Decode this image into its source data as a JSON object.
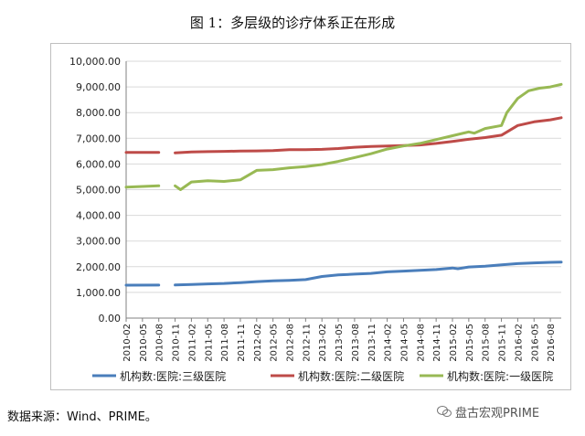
{
  "figure": {
    "title": "图 1：多层级的诊疗体系正在形成",
    "source": "数据来源：Wind、PRIME。",
    "watermark": "盘古宏观PRIME"
  },
  "colors": {
    "series_blue": "#4a7ebb",
    "series_red": "#be4b48",
    "series_green": "#98b954",
    "grid": "#d9d9d9",
    "axis": "#808080"
  },
  "chart_data": {
    "type": "line",
    "title": "",
    "xlabel": "",
    "ylabel": "",
    "ylim": [
      0,
      10000
    ],
    "yticks": [
      "0.00",
      "1,000.00",
      "2,000.00",
      "3,000.00",
      "4,000.00",
      "5,000.00",
      "6,000.00",
      "7,000.00",
      "8,000.00",
      "9,000.00",
      "10,000.00"
    ],
    "xticks": [
      "2010-02",
      "2010-05",
      "2010-08",
      "2010-11",
      "2011-02",
      "2011-05",
      "2011-08",
      "2011-11",
      "2012-02",
      "2012-05",
      "2012-08",
      "2012-11",
      "2013-02",
      "2013-05",
      "2013-08",
      "2013-11",
      "2014-02",
      "2014-05",
      "2014-08",
      "2014-11",
      "2015-02",
      "2015-05",
      "2015-08",
      "2015-11",
      "2016-02",
      "2016-05",
      "2016-08"
    ],
    "x_start": "2010-02",
    "x_end": "2016-10",
    "grid": true,
    "legend": "bottom",
    "series": [
      {
        "name": "机构数:医院:三级医院",
        "points": [
          [
            "2010-02",
            1280
          ],
          [
            "2010-08",
            1285
          ],
          [
            "2010-10",
            null
          ],
          [
            "2010-11",
            1290
          ],
          [
            "2011-02",
            1310
          ],
          [
            "2011-05",
            1330
          ],
          [
            "2011-08",
            1350
          ],
          [
            "2011-11",
            1380
          ],
          [
            "2012-02",
            1420
          ],
          [
            "2012-05",
            1450
          ],
          [
            "2012-08",
            1470
          ],
          [
            "2012-11",
            1500
          ],
          [
            "2013-02",
            1620
          ],
          [
            "2013-05",
            1680
          ],
          [
            "2013-08",
            1710
          ],
          [
            "2013-11",
            1740
          ],
          [
            "2014-02",
            1800
          ],
          [
            "2014-05",
            1830
          ],
          [
            "2014-08",
            1860
          ],
          [
            "2014-11",
            1890
          ],
          [
            "2015-02",
            1950
          ],
          [
            "2015-03",
            1920
          ],
          [
            "2015-05",
            1990
          ],
          [
            "2015-08",
            2020
          ],
          [
            "2015-11",
            2070
          ],
          [
            "2016-02",
            2120
          ],
          [
            "2016-05",
            2150
          ],
          [
            "2016-08",
            2170
          ],
          [
            "2016-10",
            2180
          ]
        ]
      },
      {
        "name": "机构数:医院:二级医院",
        "points": [
          [
            "2010-02",
            6450
          ],
          [
            "2010-08",
            6450
          ],
          [
            "2010-10",
            null
          ],
          [
            "2010-11",
            6430
          ],
          [
            "2011-02",
            6470
          ],
          [
            "2011-05",
            6480
          ],
          [
            "2011-08",
            6490
          ],
          [
            "2011-11",
            6500
          ],
          [
            "2012-02",
            6510
          ],
          [
            "2012-05",
            6520
          ],
          [
            "2012-08",
            6560
          ],
          [
            "2012-11",
            6560
          ],
          [
            "2013-02",
            6570
          ],
          [
            "2013-05",
            6600
          ],
          [
            "2013-08",
            6650
          ],
          [
            "2013-11",
            6680
          ],
          [
            "2014-02",
            6700
          ],
          [
            "2014-05",
            6720
          ],
          [
            "2014-08",
            6740
          ],
          [
            "2014-11",
            6800
          ],
          [
            "2015-02",
            6880
          ],
          [
            "2015-05",
            6960
          ],
          [
            "2015-08",
            7030
          ],
          [
            "2015-11",
            7120
          ],
          [
            "2016-02",
            7500
          ],
          [
            "2016-05",
            7640
          ],
          [
            "2016-08",
            7720
          ],
          [
            "2016-10",
            7800
          ]
        ]
      },
      {
        "name": "机构数:医院:一级医院",
        "points": [
          [
            "2010-02",
            5100
          ],
          [
            "2010-08",
            5150
          ],
          [
            "2010-10",
            null
          ],
          [
            "2010-11",
            5150
          ],
          [
            "2010-12",
            5000
          ],
          [
            "2011-02",
            5300
          ],
          [
            "2011-05",
            5350
          ],
          [
            "2011-08",
            5320
          ],
          [
            "2011-11",
            5380
          ],
          [
            "2012-02",
            5750
          ],
          [
            "2012-05",
            5780
          ],
          [
            "2012-08",
            5850
          ],
          [
            "2012-11",
            5900
          ],
          [
            "2013-02",
            5980
          ],
          [
            "2013-05",
            6100
          ],
          [
            "2013-08",
            6250
          ],
          [
            "2013-11",
            6400
          ],
          [
            "2014-02",
            6580
          ],
          [
            "2014-05",
            6700
          ],
          [
            "2014-08",
            6800
          ],
          [
            "2014-11",
            6950
          ],
          [
            "2015-02",
            7100
          ],
          [
            "2015-05",
            7250
          ],
          [
            "2015-06",
            7200
          ],
          [
            "2015-08",
            7380
          ],
          [
            "2015-11",
            7500
          ],
          [
            "2015-12",
            8000
          ],
          [
            "2016-02",
            8550
          ],
          [
            "2016-04",
            8850
          ],
          [
            "2016-06",
            8950
          ],
          [
            "2016-08",
            9000
          ],
          [
            "2016-10",
            9100
          ]
        ]
      }
    ]
  }
}
